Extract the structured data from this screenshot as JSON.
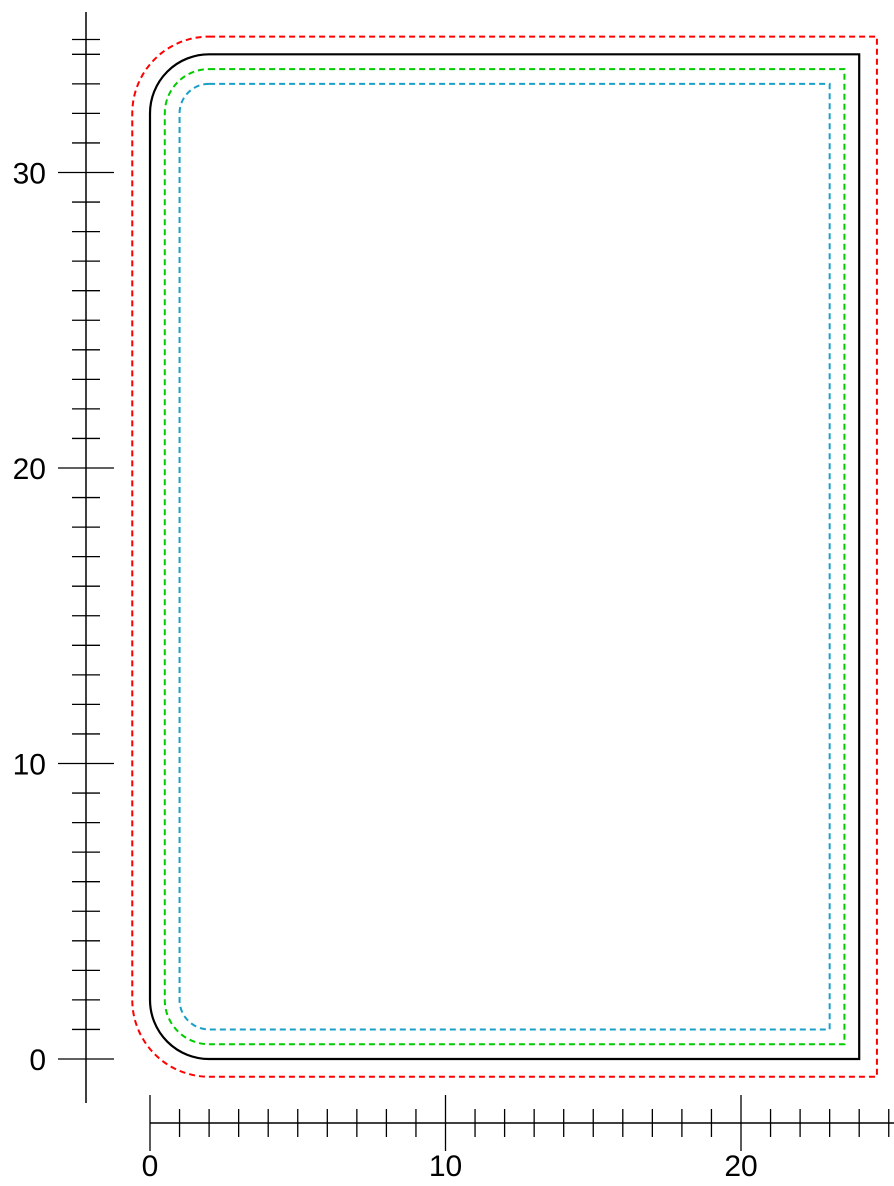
{
  "diagram": {
    "units": "mm",
    "x_axis": {
      "min": 0,
      "max": 25,
      "minor_step": 1,
      "major_step": 10,
      "tick_labels": [
        "0",
        "10",
        "20"
      ]
    },
    "y_axis": {
      "min": 0,
      "max": 34,
      "minor_step": 1,
      "major_step": 10,
      "tick_labels": [
        "0",
        "10",
        "20",
        "30"
      ]
    },
    "outlines": [
      {
        "name": "outline-outer-red",
        "color": "#ff0000",
        "style": "dashed",
        "x_range": [
          -0.6,
          24.6
        ],
        "y_range": [
          -0.6,
          34.6
        ],
        "corner_radius": 2.6
      },
      {
        "name": "outline-board-black",
        "color": "#000000",
        "style": "solid",
        "x_range": [
          0,
          24
        ],
        "y_range": [
          0,
          34
        ],
        "corner_radius": 2
      },
      {
        "name": "outline-inner-green",
        "color": "#00cc00",
        "style": "dashed",
        "x_range": [
          0.5,
          23.5
        ],
        "y_range": [
          0.5,
          33.5
        ],
        "corner_radius": 1.5
      },
      {
        "name": "outline-innermost-cyan",
        "color": "#1aa0c8",
        "style": "dashed",
        "x_range": [
          1,
          23
        ],
        "y_range": [
          1,
          33
        ],
        "corner_radius": 1
      }
    ]
  }
}
